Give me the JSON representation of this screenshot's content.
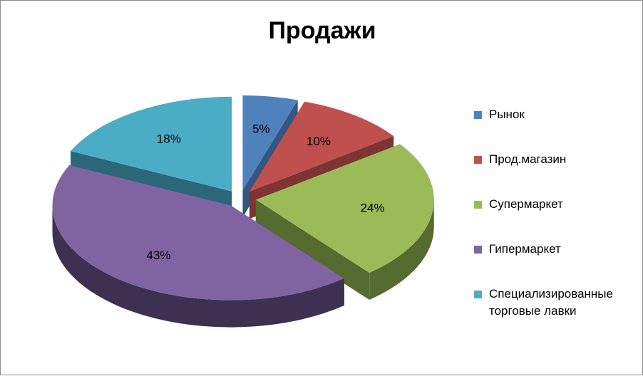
{
  "chart_data": {
    "type": "pie",
    "title": "Продажи",
    "categories": [
      "Рынок",
      "Прод.магазин",
      "Супермаркет",
      "Гипермаркет",
      "Специализированные торговые лавки"
    ],
    "values": [
      5,
      10,
      24,
      43,
      18
    ],
    "data_labels": [
      "5%",
      "10%",
      "24%",
      "43%",
      "18%"
    ],
    "colors": [
      "#4F81BD",
      "#C0504D",
      "#9BBB59",
      "#8064A2",
      "#4BACC6"
    ],
    "side_colors": [
      "#35567e",
      "#7d3432",
      "#566b2f",
      "#3e3050",
      "#2b6778"
    ],
    "legend_position": "right",
    "exploded": true,
    "style": "3d"
  }
}
